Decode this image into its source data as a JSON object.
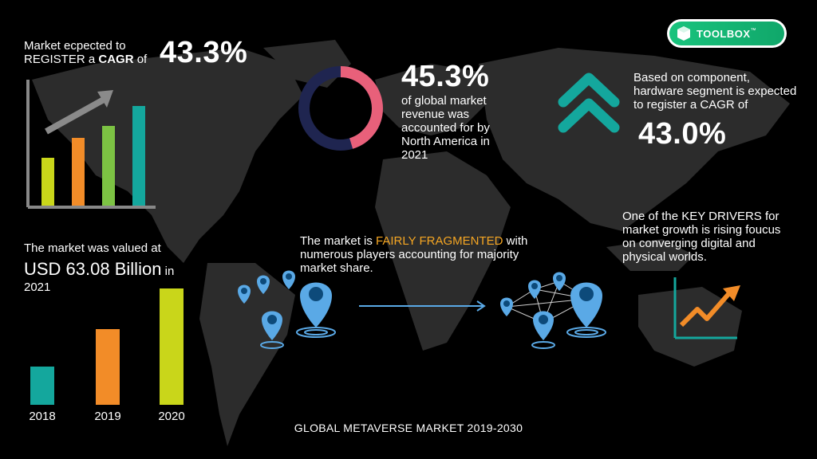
{
  "brand": {
    "name": "TOOLBOX",
    "tm": "™",
    "color": "#19c37d"
  },
  "cagr": {
    "line1": "Market ecpected to",
    "line2a": "REGISTER a ",
    "line2b": "CAGR",
    "line2c": " of",
    "value": "43.3%"
  },
  "north_america": {
    "value": "45.3%",
    "text_lines": [
      "of global market",
      "revenue was",
      "accounted for by",
      "North America in",
      "2021"
    ],
    "share": 0.453
  },
  "component": {
    "lines": [
      "Based on component,",
      "hardware segment is expected",
      "to register a CAGR of"
    ],
    "value": "43.0%"
  },
  "valued": {
    "line1": "The market was valued at",
    "amount": "USD 63.08 Billion",
    "suffix": " in",
    "year": "2021"
  },
  "fragmented": {
    "pre": "The market is ",
    "highlight": "FAIRLY FRAGMENTED",
    "post": " with",
    "line2": "numerous players accounting for majority",
    "line3": "market share."
  },
  "drivers": {
    "lines": [
      "One of the KEY DRIVERS for",
      "market growth is rising foucus",
      "on converging digital and",
      "physical worlds."
    ]
  },
  "bars": {
    "years": [
      "2018",
      "2019",
      "2020"
    ],
    "relative_values": [
      0.33,
      0.65,
      1.0
    ],
    "colors": [
      "#14a79d",
      "#f28c28",
      "#c9d61a"
    ]
  },
  "footer": {
    "title": "GLOBAL METAVERSE MARKET 2019-2030"
  },
  "colors": {
    "accent_orange": "#f5a623",
    "teal": "#14a79d",
    "pink": "#e8607a",
    "navy": "#1f2550",
    "pin_blue": "#5aa9e6"
  }
}
